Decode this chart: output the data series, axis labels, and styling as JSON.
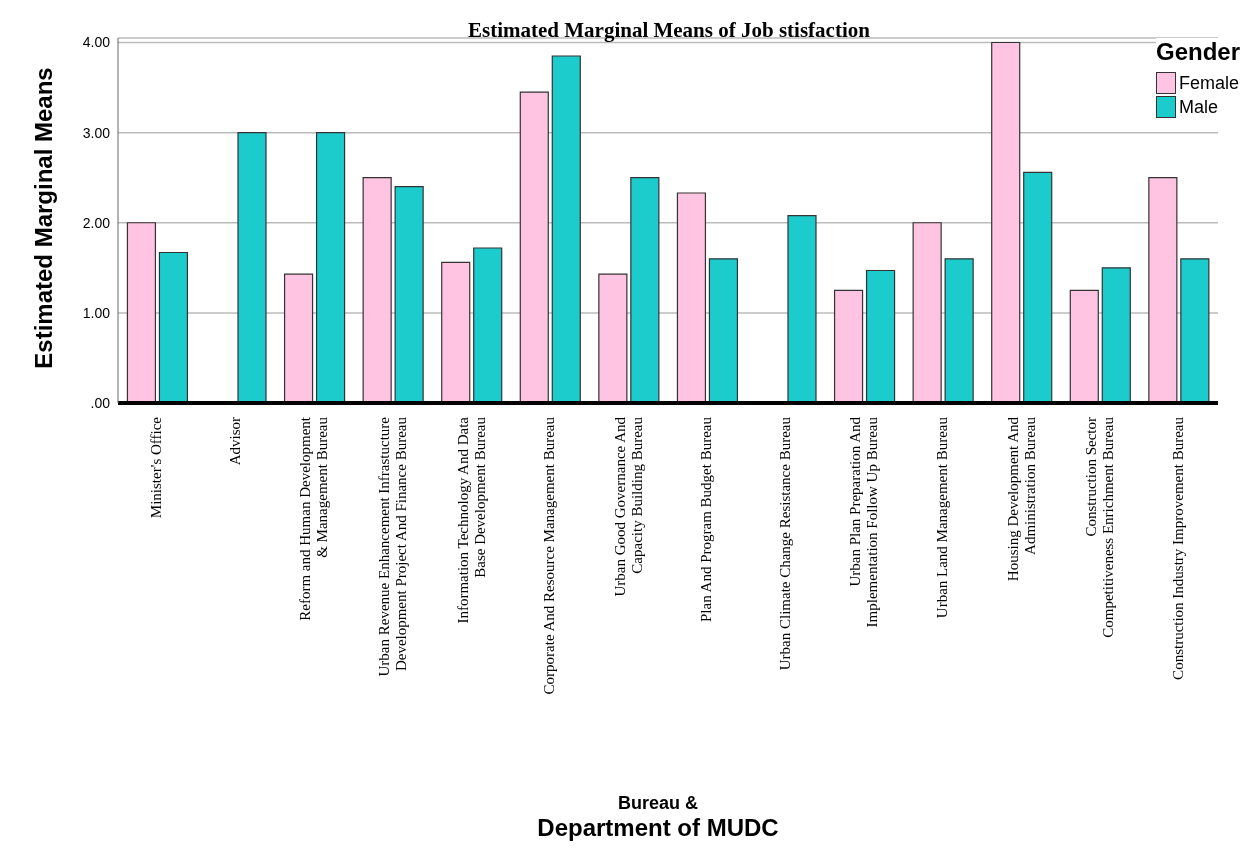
{
  "chart_data": {
    "type": "bar",
    "title": "Estimated Marginal Means of Job stisfaction",
    "xlabel": "Bureau &\nDepartment of MUDC",
    "ylabel": "Estimated Marginal Means",
    "legend_title": "Gender",
    "categories": [
      "Minister's Office",
      "Advisor",
      "Reform and Human Development & Management Bureau",
      "Urban Revenue Enhancement Infrastucture Development Project And Finance Bureau",
      "Information Technology And Data Base Development Bureau",
      "Corporate And Resource Management Bureau",
      "Urban Good Governance And Capacity Building Bureau",
      "Plan And Program Budget Bureau",
      "Urban Climate Change Resistance Bureau",
      "Urban Plan Preparation And Implementation Follow Up Bureau",
      "Urban Land Management Bureau",
      "Housing Development And Administration Bureau",
      "Construction Sector Competitiveness Enrichment Bureau",
      "Construction Industry Improvement Bureau"
    ],
    "series": [
      {
        "name": "Female",
        "color": "#ffc4e1",
        "values": [
          2.0,
          null,
          1.43,
          2.5,
          1.56,
          3.45,
          1.43,
          2.33,
          null,
          1.25,
          2.0,
          4.0,
          1.25,
          2.5
        ]
      },
      {
        "name": "Male",
        "color": "#1ccccc",
        "values": [
          1.67,
          3.0,
          3.0,
          2.4,
          1.72,
          3.85,
          2.5,
          1.6,
          2.08,
          1.47,
          1.6,
          2.56,
          1.5,
          1.6
        ]
      }
    ],
    "ylim": [
      0,
      4.05
    ],
    "yticks": [
      {
        "value": 0,
        "label": ".00"
      },
      {
        "value": 1,
        "label": "1.00"
      },
      {
        "value": 2,
        "label": "2.00"
      },
      {
        "value": 3,
        "label": "3.00"
      },
      {
        "value": 4,
        "label": "4.00"
      }
    ],
    "grid": "y",
    "legend": "top right"
  }
}
